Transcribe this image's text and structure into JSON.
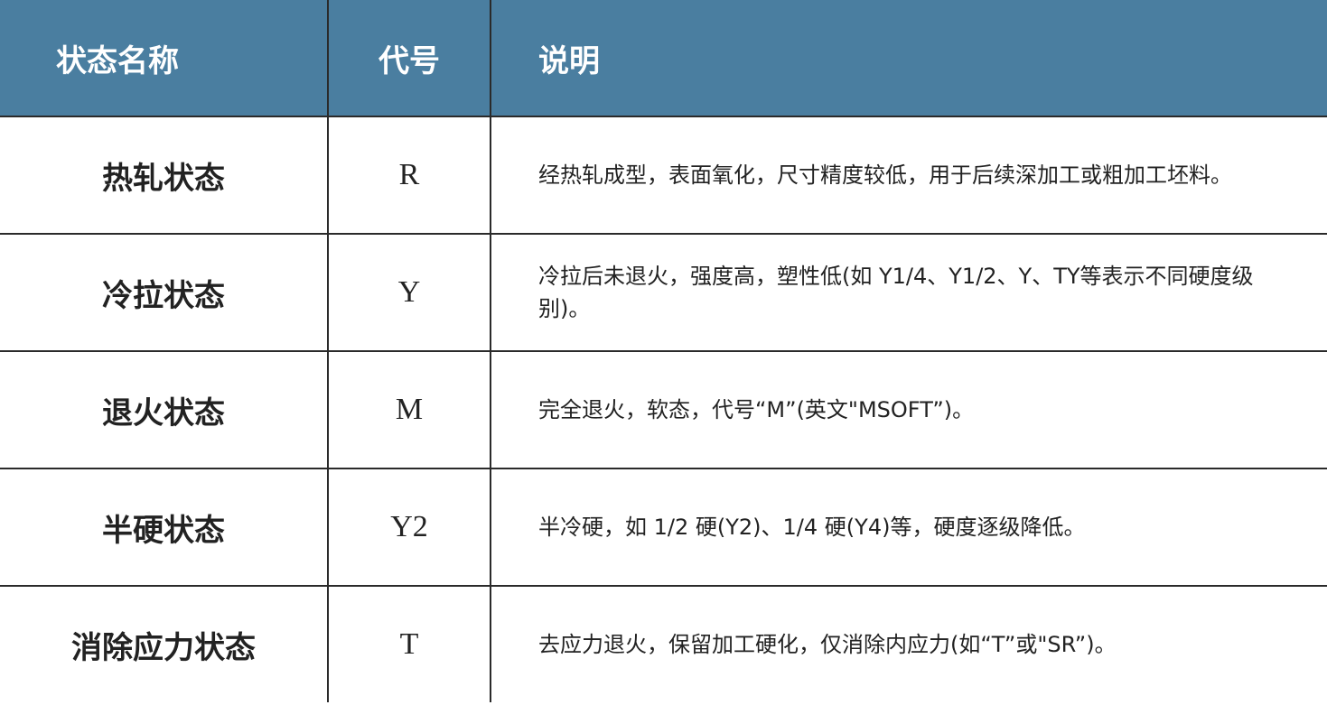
{
  "header": {
    "name": "状态名称",
    "code": "代号",
    "desc": "说明"
  },
  "header_color": "#4a7ea0",
  "rows": [
    {
      "name": "热轧状态",
      "code": "R",
      "desc": "经热轧成型，表面氧化，尺寸精度较低，用于后续深加工或粗加工坯料。"
    },
    {
      "name": "冷拉状态",
      "code": "Y",
      "desc": "冷拉后未退火，强度高，塑性低(如 Y1/4、Y1/2、Y、TY等表示不同硬度级别)。"
    },
    {
      "name": "退火状态",
      "code": "M",
      "desc": "完全退火，软态，代号“M”(英文\"MSOFT”)。"
    },
    {
      "name": "半硬状态",
      "code": "Y2",
      "desc": "半冷硬，如 1/2 硬(Y2)、1/4 硬(Y4)等，硬度逐级降低。"
    },
    {
      "name": "消除应力状态",
      "code": "T",
      "desc": "去应力退火，保留加工硬化，仅消除内应力(如“T”或\"SR”)。"
    }
  ]
}
